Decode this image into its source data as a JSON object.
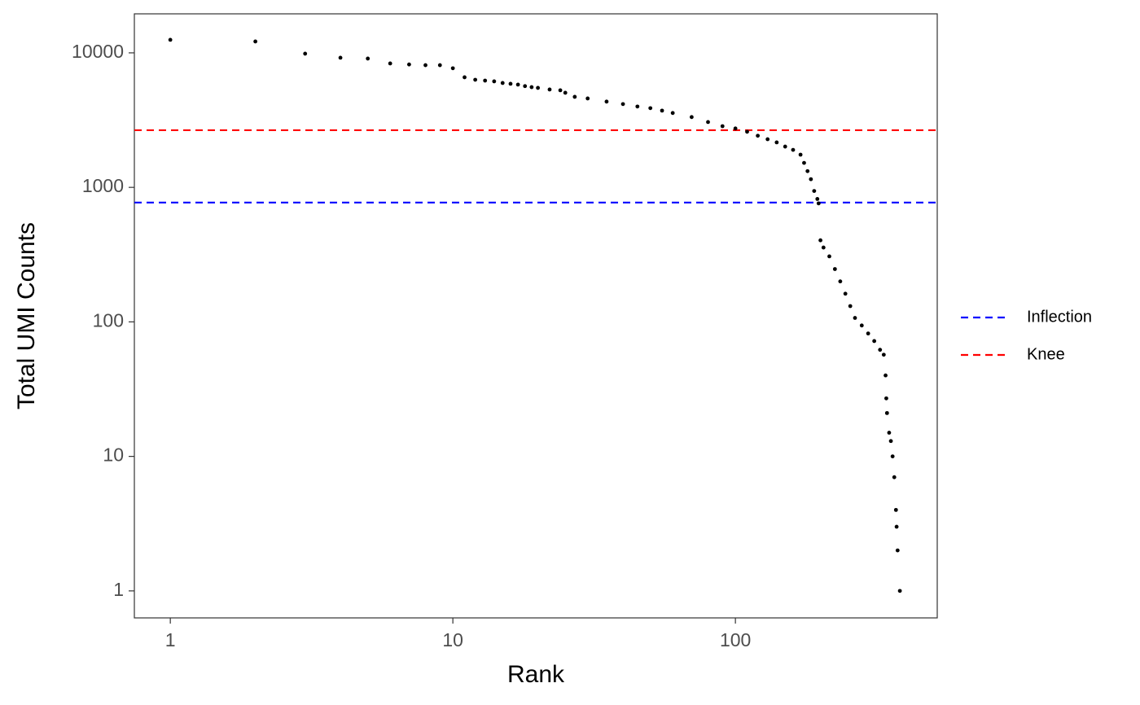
{
  "chart_data": {
    "type": "scatter",
    "xlabel": "Rank",
    "ylabel": "Total UMI Counts",
    "xlog": true,
    "ylog": true,
    "grid": false,
    "xlim": [
      0.746,
      518
    ],
    "ylim": [
      0.63,
      19500
    ],
    "xticks": [
      1,
      10,
      100
    ],
    "yticks": [
      1,
      10,
      100,
      1000,
      10000
    ],
    "point_color": "#000000",
    "x": [
      1,
      2,
      3,
      4,
      5,
      6,
      7,
      8,
      9,
      10,
      11,
      12,
      13,
      14,
      15,
      16,
      17,
      18,
      19,
      20,
      22,
      24,
      25,
      27,
      30,
      35,
      40,
      45,
      50,
      55,
      60,
      70,
      80,
      90,
      100,
      110,
      120,
      130,
      140,
      150,
      160,
      170,
      175,
      180,
      185,
      190,
      195,
      197,
      200,
      205,
      215,
      225,
      235,
      245,
      255,
      265,
      280,
      295,
      310,
      325,
      335,
      340,
      342,
      344,
      350,
      355,
      360,
      365,
      370,
      372,
      375,
      382
    ],
    "y": [
      12500,
      12150,
      9860,
      9200,
      9070,
      8340,
      8200,
      8100,
      8100,
      7680,
      6580,
      6310,
      6220,
      6140,
      5970,
      5890,
      5810,
      5660,
      5560,
      5490,
      5340,
      5270,
      5050,
      4710,
      4580,
      4340,
      4160,
      3990,
      3880,
      3720,
      3570,
      3330,
      3060,
      2850,
      2740,
      2590,
      2420,
      2280,
      2160,
      2010,
      1900,
      1750,
      1520,
      1320,
      1150,
      940,
      820,
      760,
      404,
      357,
      307,
      247,
      200,
      162,
      131,
      107,
      94,
      82,
      72,
      62,
      57,
      40,
      27,
      21,
      15,
      13,
      10,
      7,
      4,
      3,
      2,
      1
    ],
    "hlines": [
      {
        "name": "Inflection",
        "color": "#0000ff",
        "value": 771
      },
      {
        "name": "Knee",
        "color": "#ff0000",
        "value": 2660
      }
    ],
    "legend_position": "right"
  }
}
